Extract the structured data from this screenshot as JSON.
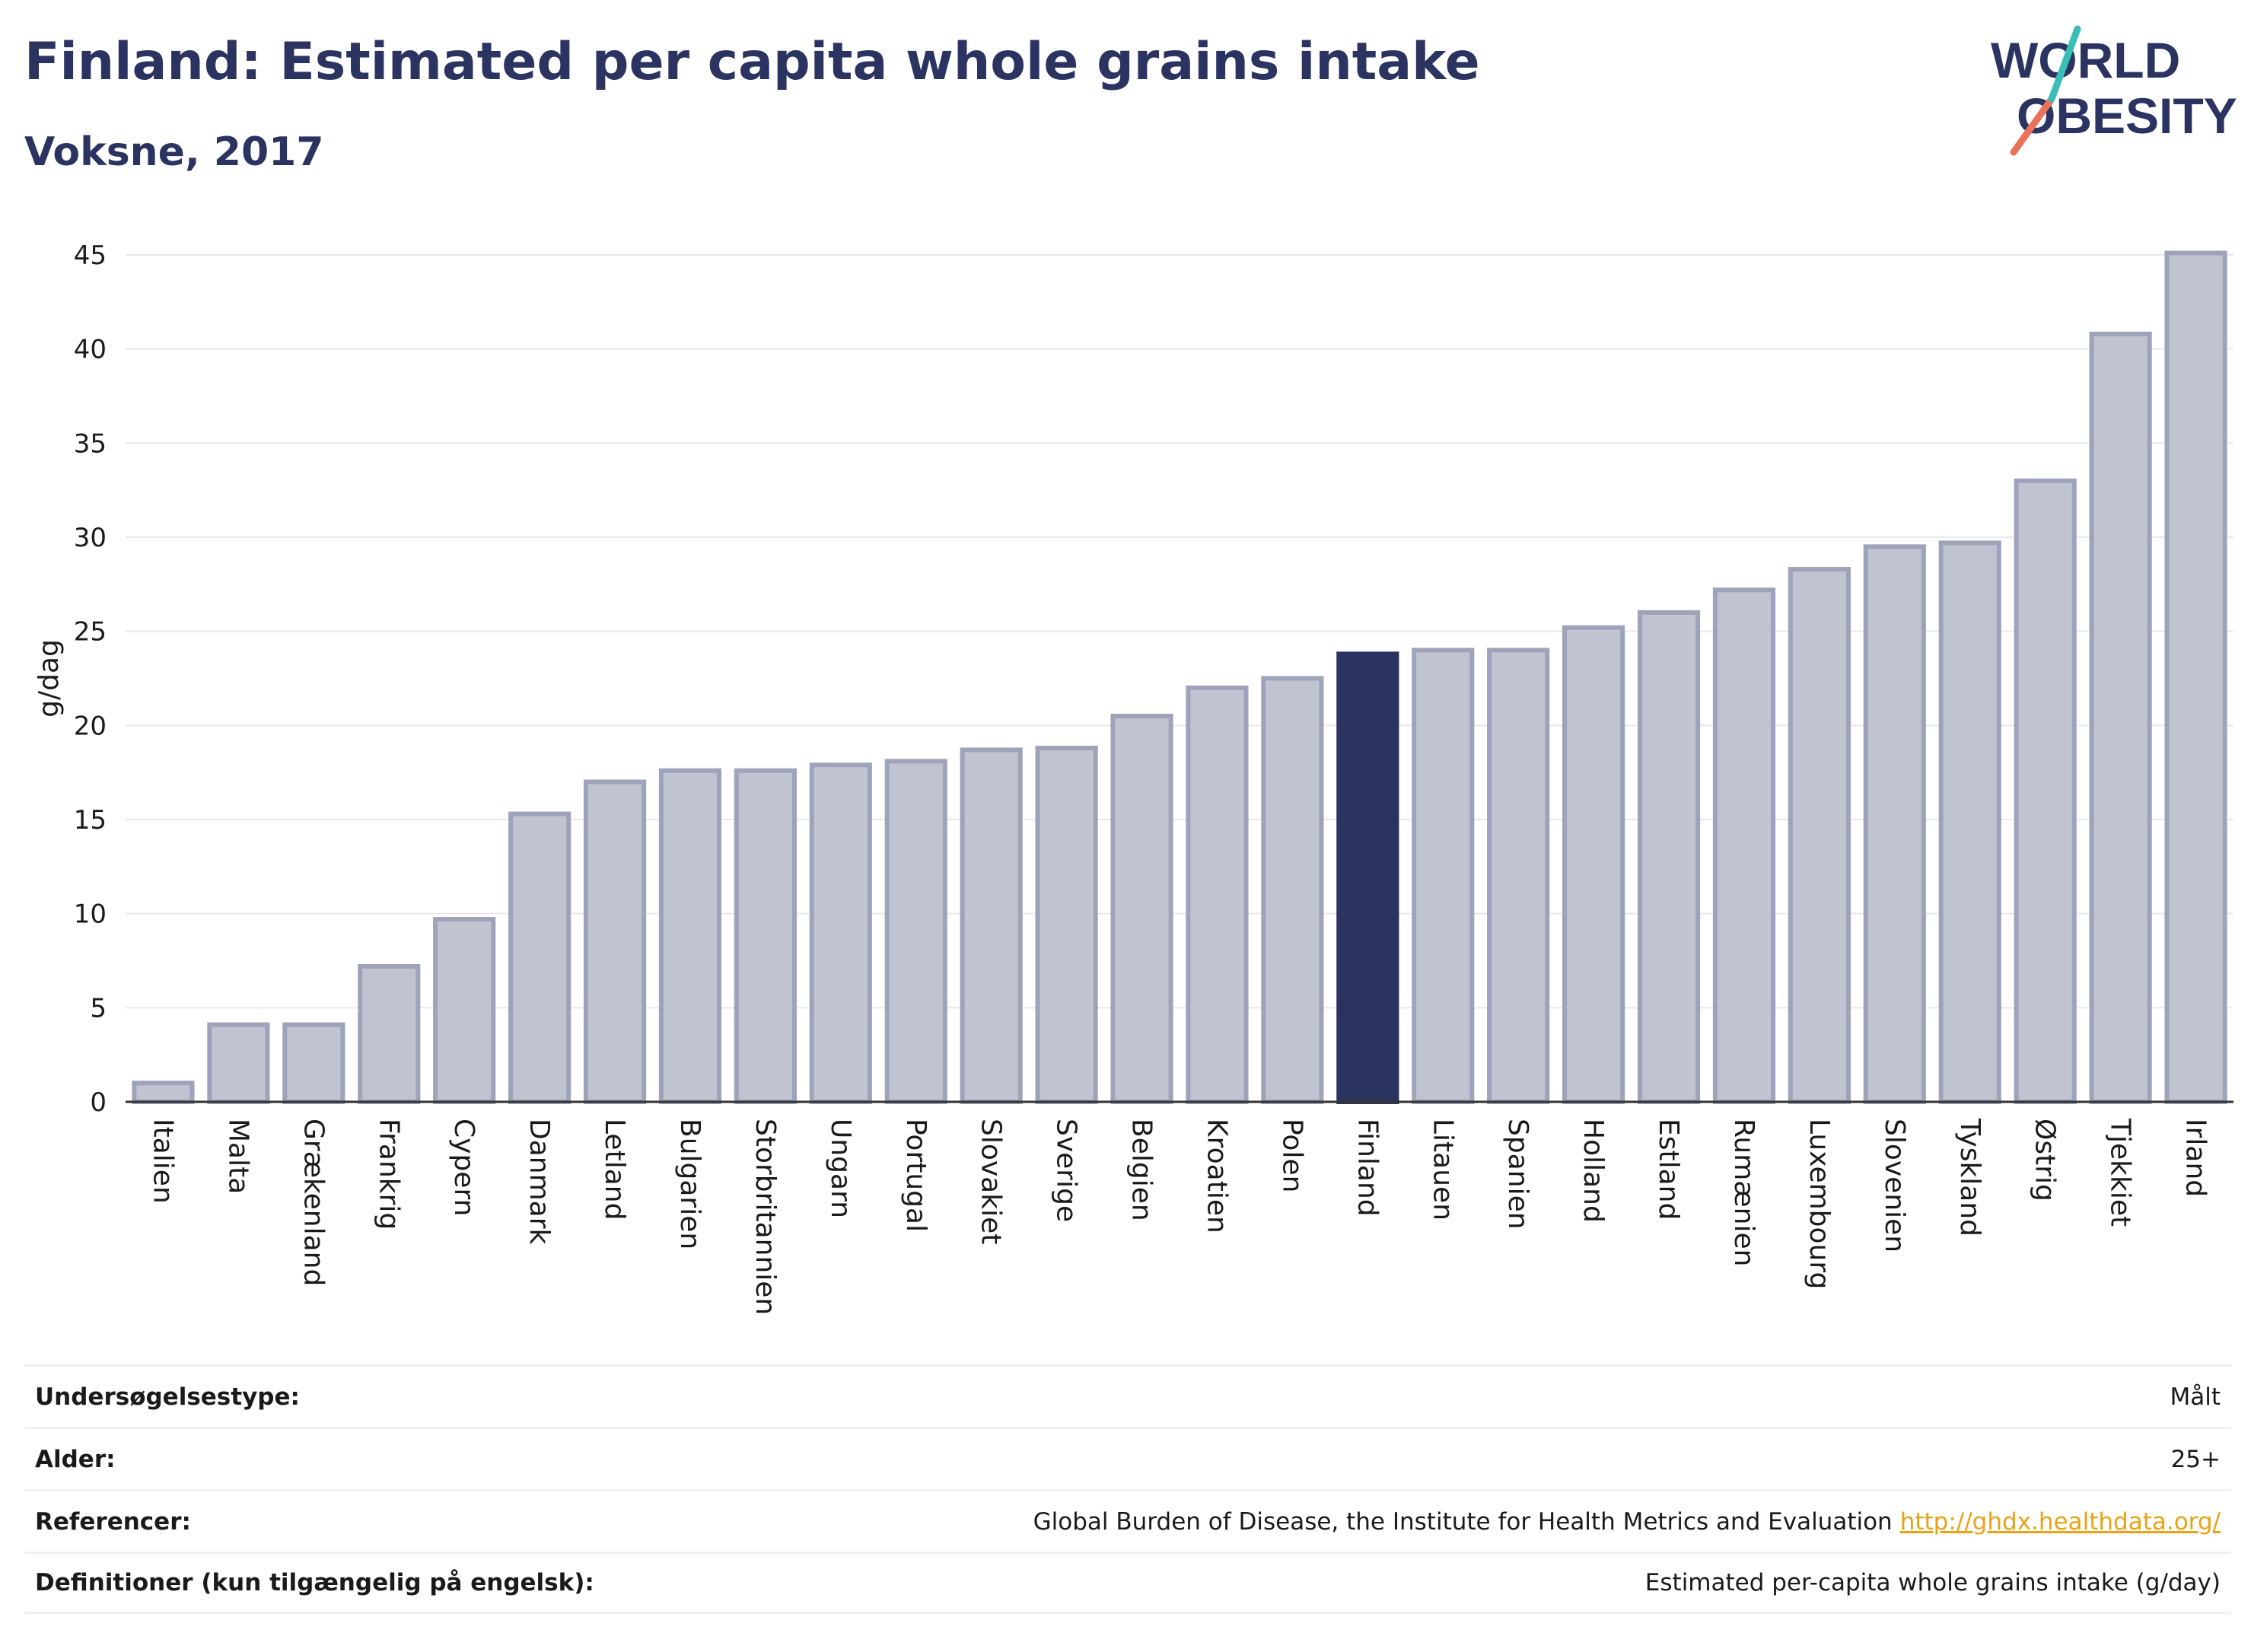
{
  "header": {
    "title": "Finland: Estimated per capita whole grains intake",
    "subtitle": "Voksne, 2017"
  },
  "logo": {
    "line1": "WORLD",
    "line2": "OBESITY"
  },
  "colors": {
    "highlight": "#2b3361",
    "bar_fill": "#c0c3d0",
    "bar_stroke": "#9ea3ba",
    "grid": "#e6e8ee"
  },
  "chart_data": {
    "type": "bar",
    "ylabel": "g/dag",
    "ylim": [
      0,
      45
    ],
    "yticks": [
      0,
      5,
      10,
      15,
      20,
      25,
      30,
      35,
      40,
      45
    ],
    "grid": true,
    "highlight": "Finland",
    "categories": [
      "Italien",
      "Malta",
      "Grækenland",
      "Frankrig",
      "Cypern",
      "Danmark",
      "Letland",
      "Bulgarien",
      "Storbritannien",
      "Ungarn",
      "Portugal",
      "Slovakiet",
      "Sverige",
      "Belgien",
      "Kroatien",
      "Polen",
      "Finland",
      "Litauen",
      "Spanien",
      "Holland",
      "Estland",
      "Rumænien",
      "Luxembourg",
      "Slovenien",
      "Tyskland",
      "Østrig",
      "Tjekkiet",
      "Irland"
    ],
    "values": [
      1.0,
      4.1,
      4.1,
      7.2,
      9.7,
      15.3,
      17.0,
      17.6,
      17.6,
      17.9,
      18.1,
      18.7,
      18.8,
      20.5,
      22.0,
      22.5,
      23.8,
      24.0,
      24.0,
      25.2,
      26.0,
      27.2,
      28.3,
      29.5,
      29.7,
      33.0,
      40.8,
      45.1
    ]
  },
  "info": {
    "rows": [
      {
        "label": "Undersøgelsestype:",
        "value": "Målt",
        "link": ""
      },
      {
        "label": "Alder:",
        "value": "25+",
        "link": ""
      },
      {
        "label": "Referencer:",
        "value": "Global Burden of Disease, the Institute for Health Metrics and Evaluation",
        "link": "http://ghdx.healthdata.org/"
      },
      {
        "label": "Definitioner (kun tilgængelig på engelsk):",
        "value": "Estimated per-capita whole grains intake (g/day)",
        "link": ""
      }
    ]
  }
}
